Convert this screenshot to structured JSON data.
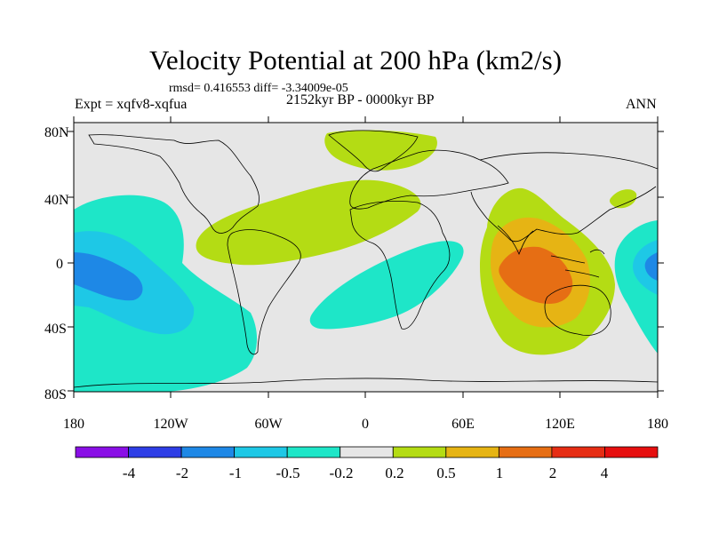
{
  "title": "Velocity Potential at 200 hPa (km2/s)",
  "stats_line": "rmsd= 0.416553 diff= -3.34009e-05",
  "left_label": "Expt = xqfv8-xqfua",
  "center_label": "2152kyr BP - 0000kyr BP",
  "right_label": "ANN",
  "map": {
    "projection": "cylindrical-equidistant",
    "lon_range": [
      -180,
      180
    ],
    "lat_range": [
      -90,
      90
    ],
    "lat_ticks": [
      "80N",
      "40N",
      "0",
      "40S",
      "80S"
    ],
    "lon_ticks": [
      "180",
      "120W",
      "60W",
      "0",
      "60E",
      "120E",
      "180"
    ]
  },
  "colorbar": {
    "labels": [
      "-4",
      "-2",
      "-1",
      "-0.5",
      "-0.2",
      "0.2",
      "0.5",
      "1",
      "2",
      "4"
    ],
    "colors": [
      "#8a0fe6",
      "#2e3ee6",
      "#1e88e6",
      "#1ec8e6",
      "#1ee6c8",
      "#e6e6e6",
      "#b4dc14",
      "#e6b414",
      "#e66e14",
      "#e62d14",
      "#e60f0f"
    ]
  }
}
